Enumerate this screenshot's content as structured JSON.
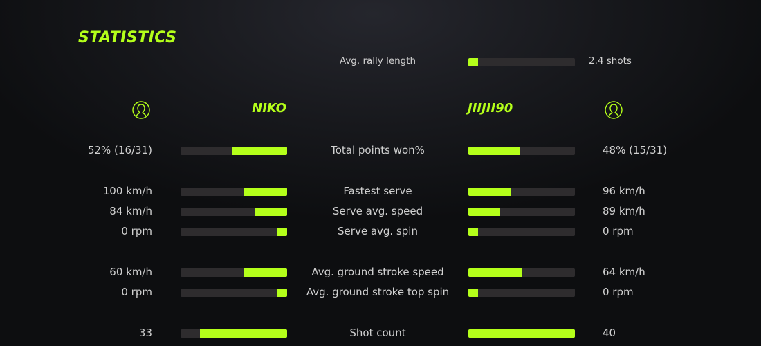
{
  "title": "STATISTICS",
  "accent": "#b4ff1a",
  "rally": {
    "label": "Avg. rally length",
    "value": "2.4 shots",
    "fill": 9
  },
  "players": {
    "left": {
      "name": "NIKO",
      "icon": "user-circle-icon"
    },
    "right": {
      "name": "JIIJII90",
      "icon": "user-circle-icon"
    }
  },
  "stats": [
    {
      "label": "Total points won%",
      "left": "52% (16/31)",
      "right": "48% (15/31)",
      "left_fill": 51,
      "right_fill": 48
    },
    {
      "label": "Fastest serve",
      "left": "100 km/h",
      "right": "96 km/h",
      "left_fill": 40,
      "right_fill": 40
    },
    {
      "label": "Serve avg. speed",
      "left": "84 km/h",
      "right": "89 km/h",
      "left_fill": 30,
      "right_fill": 30
    },
    {
      "label": "Serve avg. spin",
      "left": "0 rpm",
      "right": "0 rpm",
      "left_fill": 9,
      "right_fill": 9
    },
    {
      "label": "Avg. ground stroke speed",
      "left": "60 km/h",
      "right": "64 km/h",
      "left_fill": 40,
      "right_fill": 50
    },
    {
      "label": "Avg. ground stroke top spin",
      "left": "0 rpm",
      "right": "0 rpm",
      "left_fill": 9,
      "right_fill": 9
    },
    {
      "label": "Shot count",
      "left": "33",
      "right": "40",
      "left_fill": 82,
      "right_fill": 100
    }
  ]
}
